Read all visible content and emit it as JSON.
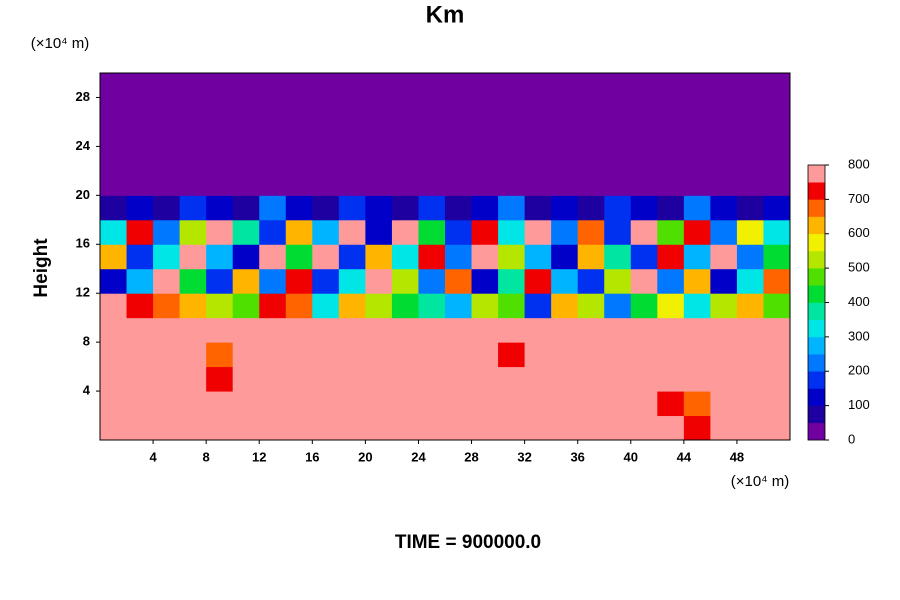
{
  "chart_data": {
    "type": "heatmap",
    "title": "Km",
    "ylabel": "Height",
    "xunit": "(×10⁴ m)",
    "yunit": "(×10⁴ m)",
    "footer": "TIME = 900000.0",
    "xlim": [
      0,
      52
    ],
    "ylim": [
      0,
      30
    ],
    "xticks": [
      4,
      8,
      12,
      16,
      20,
      24,
      28,
      32,
      36,
      40,
      44,
      48
    ],
    "yticks": [
      4,
      8,
      12,
      16,
      20,
      24,
      28
    ],
    "x": [
      1,
      3,
      5,
      7,
      9,
      11,
      13,
      15,
      17,
      19,
      21,
      23,
      25,
      27,
      29,
      31,
      33,
      35,
      37,
      39,
      41,
      43,
      45,
      47,
      49,
      51
    ],
    "y": [
      1,
      3,
      5,
      7,
      9,
      11,
      13,
      15,
      17,
      19,
      21,
      23,
      25,
      27,
      29
    ],
    "z": [
      [
        800,
        800,
        800,
        800,
        800,
        800,
        800,
        800,
        800,
        800,
        800,
        800,
        800,
        800,
        800,
        800,
        800,
        800,
        800,
        800,
        800,
        750,
        700,
        800,
        800,
        800
      ],
      [
        800,
        800,
        800,
        800,
        800,
        800,
        800,
        800,
        800,
        800,
        800,
        800,
        800,
        800,
        800,
        800,
        800,
        800,
        800,
        800,
        800,
        700,
        650,
        800,
        800,
        800
      ],
      [
        800,
        800,
        800,
        800,
        700,
        750,
        800,
        800,
        800,
        800,
        800,
        800,
        750,
        800,
        800,
        800,
        800,
        750,
        800,
        800,
        800,
        750,
        750,
        800,
        800,
        800
      ],
      [
        800,
        800,
        800,
        800,
        650,
        800,
        800,
        800,
        800,
        800,
        800,
        800,
        800,
        800,
        750,
        700,
        750,
        800,
        800,
        800,
        800,
        800,
        800,
        750,
        800,
        800
      ],
      [
        800,
        800,
        800,
        800,
        800,
        800,
        800,
        800,
        800,
        800,
        800,
        800,
        800,
        800,
        800,
        750,
        800,
        800,
        800,
        800,
        800,
        800,
        800,
        800,
        800,
        750
      ],
      [
        750,
        700,
        650,
        600,
        500,
        450,
        700,
        650,
        300,
        600,
        500,
        400,
        350,
        250,
        500,
        450,
        150,
        600,
        500,
        200,
        400,
        550,
        300,
        500,
        600,
        450
      ],
      [
        100,
        250,
        800,
        400,
        150,
        600,
        200,
        700,
        150,
        300,
        800,
        500,
        200,
        650,
        100,
        350,
        700,
        250,
        150,
        500,
        750,
        200,
        600,
        100,
        300,
        650
      ],
      [
        600,
        150,
        300,
        800,
        250,
        100,
        750,
        400,
        800,
        150,
        600,
        300,
        700,
        200,
        800,
        500,
        250,
        100,
        600,
        350,
        150,
        700,
        250,
        800,
        200,
        400
      ],
      [
        300,
        700,
        200,
        500,
        800,
        350,
        150,
        600,
        250,
        800,
        100,
        750,
        400,
        150,
        700,
        300,
        800,
        200,
        650,
        150,
        800,
        450,
        700,
        200,
        550,
        300
      ],
      [
        50,
        100,
        50,
        150,
        100,
        50,
        200,
        100,
        50,
        150,
        100,
        50,
        150,
        50,
        100,
        200,
        50,
        100,
        50,
        150,
        100,
        50,
        200,
        100,
        50,
        100
      ],
      [
        0,
        0,
        0,
        0,
        0,
        0,
        0,
        0,
        0,
        0,
        0,
        0,
        0,
        0,
        0,
        0,
        0,
        0,
        0,
        0,
        0,
        0,
        0,
        0,
        0,
        0
      ],
      [
        0,
        0,
        0,
        0,
        0,
        0,
        0,
        0,
        0,
        0,
        0,
        0,
        0,
        0,
        0,
        0,
        0,
        0,
        0,
        0,
        0,
        0,
        0,
        0,
        0,
        0
      ],
      [
        0,
        0,
        0,
        0,
        0,
        0,
        0,
        0,
        0,
        0,
        0,
        0,
        0,
        0,
        0,
        0,
        0,
        0,
        0,
        0,
        0,
        0,
        0,
        0,
        0,
        0
      ],
      [
        0,
        0,
        0,
        0,
        0,
        0,
        0,
        0,
        0,
        0,
        0,
        0,
        0,
        0,
        0,
        0,
        0,
        0,
        0,
        0,
        0,
        0,
        0,
        0,
        0,
        0
      ],
      [
        0,
        0,
        0,
        0,
        0,
        0,
        0,
        0,
        0,
        0,
        0,
        0,
        0,
        0,
        0,
        0,
        0,
        0,
        0,
        0,
        0,
        0,
        0,
        0,
        0,
        0
      ]
    ],
    "colorbar": {
      "levels": [
        0,
        50,
        100,
        150,
        200,
        250,
        300,
        350,
        400,
        450,
        500,
        550,
        600,
        650,
        700,
        750,
        800
      ],
      "colors": [
        "#7000a0",
        "#1e00a0",
        "#0000c8",
        "#0030f0",
        "#0078ff",
        "#00b4ff",
        "#00e6e6",
        "#00e6a0",
        "#00dc32",
        "#50e000",
        "#b4e600",
        "#f0f000",
        "#ffb400",
        "#ff6400",
        "#f00000",
        "#ff9a9a"
      ],
      "ticks": [
        0,
        100,
        200,
        300,
        400,
        500,
        600,
        700,
        800
      ]
    }
  }
}
